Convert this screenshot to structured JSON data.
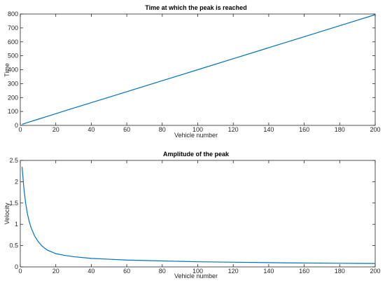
{
  "chart_data": [
    {
      "type": "line",
      "title": "Time at which the peak is reached",
      "xlabel": "Vehicle number",
      "ylabel": "Time",
      "xlim": [
        0,
        200
      ],
      "ylim": [
        0,
        800
      ],
      "xticks": [
        "0",
        "20",
        "40",
        "60",
        "80",
        "100",
        "120",
        "140",
        "160",
        "180",
        "200"
      ],
      "yticks": [
        "0",
        "100",
        "200",
        "300",
        "400",
        "500",
        "600",
        "700",
        "800"
      ],
      "grid": false,
      "color": "#0072BD",
      "series": [
        {
          "x": [
            1,
            5,
            10,
            15,
            20,
            30,
            40,
            60,
            80,
            100,
            120,
            140,
            160,
            180,
            200
          ],
          "values": [
            8,
            24,
            44,
            64,
            84,
            124,
            163,
            242,
            321,
            400,
            479,
            558,
            637,
            716,
            795
          ]
        }
      ]
    },
    {
      "type": "line",
      "title": "Amplitude of the peak",
      "xlabel": "Vehicle number",
      "ylabel": "Velocity",
      "xlim": [
        0,
        200
      ],
      "ylim": [
        0,
        2.5
      ],
      "xticks": [
        "0",
        "20",
        "40",
        "60",
        "80",
        "100",
        "120",
        "140",
        "160",
        "180",
        "200"
      ],
      "yticks": [
        "0",
        "0.5",
        "1",
        "1.5",
        "2",
        "2.5"
      ],
      "grid": false,
      "color": "#0072BD",
      "series": [
        {
          "x": [
            1,
            2,
            3,
            4,
            5,
            6,
            8,
            10,
            12,
            15,
            20,
            25,
            30,
            40,
            50,
            60,
            80,
            100,
            120,
            150,
            180,
            200
          ],
          "values": [
            2.35,
            1.85,
            1.5,
            1.25,
            1.07,
            0.93,
            0.73,
            0.6,
            0.5,
            0.4,
            0.31,
            0.27,
            0.24,
            0.2,
            0.18,
            0.16,
            0.14,
            0.12,
            0.11,
            0.095,
            0.085,
            0.08
          ]
        }
      ]
    }
  ]
}
